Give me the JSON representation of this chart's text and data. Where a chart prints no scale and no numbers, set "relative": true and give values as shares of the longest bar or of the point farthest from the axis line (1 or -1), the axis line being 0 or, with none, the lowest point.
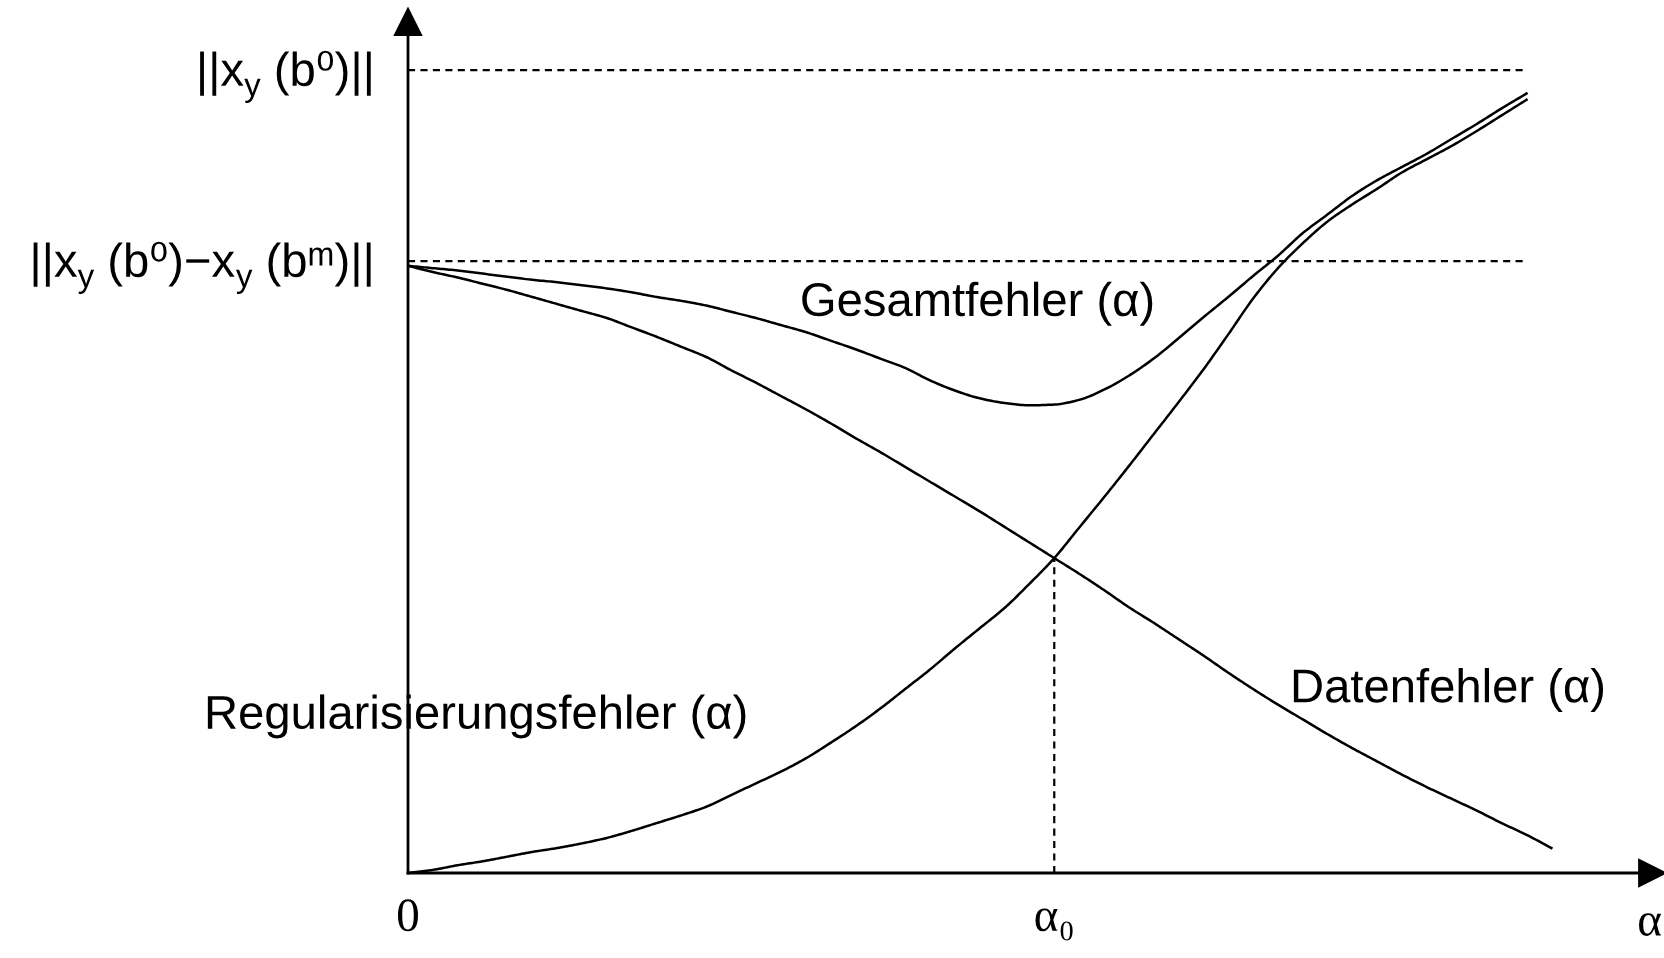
{
  "chart_data": {
    "type": "line",
    "relative": true,
    "xlabel": "α",
    "categories": [
      "0",
      null,
      null,
      null,
      null,
      null,
      null,
      null,
      null,
      null,
      null,
      null,
      null,
      null,
      null,
      null,
      null,
      null,
      null,
      null,
      null,
      null,
      null,
      null,
      null,
      null,
      "α₀",
      null,
      null,
      null,
      null,
      null,
      null,
      null,
      null,
      null,
      null,
      null,
      null,
      null,
      null,
      null,
      null,
      null,
      null,
      null,
      null
    ],
    "line_style": "solid",
    "series": [
      {
        "name": "Gesamtfehler (α)",
        "color": "#000000",
        "values": [
          0.779,
          0.776,
          0.773,
          0.769,
          0.765,
          0.761,
          0.758,
          0.754,
          0.75,
          0.745,
          0.739,
          0.734,
          0.728,
          0.72,
          0.712,
          0.703,
          0.694,
          0.683,
          0.672,
          0.66,
          0.648,
          0.632,
          0.619,
          0.609,
          0.603,
          0.6,
          0.601,
          0.607,
          0.62,
          0.638,
          0.66,
          0.686,
          0.713,
          0.739,
          0.766,
          0.792,
          0.821,
          0.845,
          0.869,
          0.889,
          0.906,
          0.923,
          0.942,
          0.961,
          0.981,
          1.0,
          null
        ]
      },
      {
        "name": "Datenfehler (α)",
        "color": "#000000",
        "values": [
          0.779,
          0.771,
          0.764,
          0.756,
          0.748,
          0.739,
          0.73,
          0.721,
          0.712,
          0.7,
          0.688,
          0.675,
          0.662,
          0.645,
          0.629,
          0.612,
          0.595,
          0.577,
          0.558,
          0.54,
          0.521,
          0.502,
          0.483,
          0.464,
          0.444,
          0.424,
          0.404,
          0.384,
          0.363,
          0.341,
          0.321,
          0.3,
          0.279,
          0.257,
          0.236,
          0.216,
          0.197,
          0.178,
          0.16,
          0.143,
          0.126,
          0.11,
          0.095,
          0.08,
          0.064,
          0.049,
          0.032
        ]
      },
      {
        "name": "Regularisierungsfehler (α)",
        "color": "#000000",
        "values": [
          0,
          0.004,
          0.01,
          0.015,
          0.021,
          0.027,
          0.032,
          0.038,
          0.045,
          0.054,
          0.064,
          0.074,
          0.085,
          0.1,
          0.115,
          0.13,
          0.147,
          0.167,
          0.188,
          0.211,
          0.236,
          0.261,
          0.288,
          0.314,
          0.34,
          0.371,
          0.404,
          0.443,
          0.482,
          0.522,
          0.563,
          0.604,
          0.646,
          0.691,
          0.737,
          0.776,
          0.808,
          0.836,
          0.858,
          0.878,
          0.899,
          0.916,
          0.933,
          0.952,
          0.972,
          0.992,
          null
        ]
      }
    ],
    "ref_lines": [
      {
        "axis": "y",
        "value": 1.03,
        "label": "||x$_{y}$ (b⁰)||",
        "color": "#000000",
        "line_style": "dashed"
      },
      {
        "axis": "y",
        "value": 0.785,
        "label": "||x$_{y}$ (b⁰)−x$_{y}$ (bᵐ)||",
        "color": "#000000",
        "line_style": "dashed"
      },
      {
        "axis": "x",
        "value": "α₀",
        "color": "#000000",
        "line_style": "dashed"
      }
    ]
  }
}
